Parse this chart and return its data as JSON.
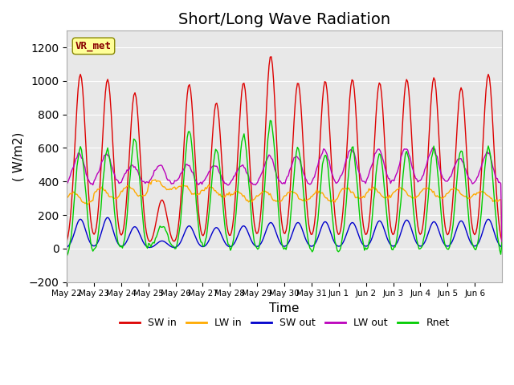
{
  "title": "Short/Long Wave Radiation",
  "xlabel": "Time",
  "ylabel": "( W/m2)",
  "ylim": [
    -200,
    1300
  ],
  "yticks": [
    -200,
    0,
    200,
    400,
    600,
    800,
    1000,
    1200
  ],
  "label_text": "VR_met",
  "n_days": 16,
  "xtick_labels": [
    "May 22",
    "May 23",
    "May 24",
    "May 25",
    "May 26",
    "May 27",
    "May 28",
    "May 29",
    "May 30",
    "May 31",
    "Jun 1",
    "Jun 2",
    "Jun 3",
    "Jun 4",
    "Jun 5",
    "Jun 6"
  ],
  "colors": {
    "SW_in": "#dd0000",
    "LW_in": "#ffaa00",
    "SW_out": "#0000cc",
    "LW_out": "#bb00bb",
    "Rnet": "#00cc00"
  },
  "legend_labels": [
    "SW in",
    "LW in",
    "SW out",
    "LW out",
    "Rnet"
  ],
  "background_color": "#ffffff",
  "plot_bg_color": "#e8e8e8",
  "label_box_color": "#ffff99",
  "label_text_color": "#880000",
  "title_fontsize": 14,
  "axis_fontsize": 11
}
